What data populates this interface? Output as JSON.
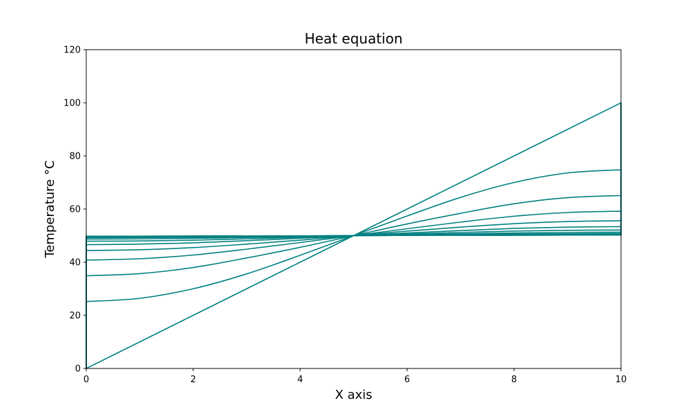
{
  "chart_data": {
    "type": "line",
    "title": "Heat equation",
    "xlabel": "X axis",
    "ylabel": "Temperature °C",
    "xlim": [
      0,
      10
    ],
    "ylim": [
      0,
      120
    ],
    "xticks": [
      0,
      2,
      4,
      6,
      8,
      10
    ],
    "yticks": [
      0,
      20,
      40,
      60,
      80,
      100,
      120
    ],
    "grid": false,
    "line_color": "#008080",
    "boundary_lines_x": [
      0,
      10
    ],
    "x": [
      0,
      1,
      2,
      3,
      4,
      5,
      6,
      7,
      8,
      9,
      10
    ],
    "series": [
      {
        "values": [
          0.0,
          10.0,
          20.0,
          30.0,
          40.0,
          50.0,
          60.0,
          70.0,
          80.0,
          90.0,
          100.0
        ]
      },
      {
        "values": [
          25.2,
          26.4,
          30.0,
          35.6,
          42.6,
          50.0,
          57.4,
          64.4,
          70.0,
          73.6,
          74.8
        ]
      },
      {
        "values": [
          34.9,
          35.7,
          38.0,
          41.6,
          45.6,
          50.0,
          54.4,
          58.4,
          62.0,
          64.3,
          65.1
        ]
      },
      {
        "values": [
          40.8,
          41.3,
          42.7,
          44.9,
          47.4,
          50.0,
          52.6,
          55.1,
          57.3,
          58.7,
          59.2
        ]
      },
      {
        "values": [
          44.4,
          44.7,
          45.5,
          46.8,
          48.3,
          50.0,
          51.7,
          53.2,
          54.5,
          55.3,
          55.6
        ]
      },
      {
        "values": [
          46.6,
          46.8,
          47.3,
          48.1,
          49.0,
          50.0,
          51.0,
          51.9,
          52.7,
          53.2,
          53.4
        ]
      },
      {
        "values": [
          47.9,
          48.0,
          48.3,
          48.8,
          49.4,
          50.0,
          50.6,
          51.2,
          51.7,
          52.0,
          52.1
        ]
      },
      {
        "values": [
          48.7,
          48.8,
          49.0,
          49.3,
          49.6,
          50.0,
          50.4,
          50.7,
          51.0,
          51.2,
          51.3
        ]
      },
      {
        "values": [
          49.2,
          49.3,
          49.4,
          49.6,
          49.8,
          50.0,
          50.2,
          50.4,
          50.6,
          50.7,
          50.8
        ]
      },
      {
        "values": [
          49.5,
          49.5,
          49.6,
          49.7,
          49.9,
          50.0,
          50.1,
          50.3,
          50.4,
          50.5,
          50.5
        ]
      },
      {
        "values": [
          49.7,
          49.7,
          49.8,
          49.8,
          49.9,
          50.0,
          50.1,
          50.2,
          50.2,
          50.3,
          50.3
        ]
      },
      {
        "values": [
          49.8,
          49.8,
          49.9,
          49.9,
          49.9,
          50.0,
          50.1,
          50.1,
          50.1,
          50.2,
          50.2
        ]
      }
    ]
  }
}
